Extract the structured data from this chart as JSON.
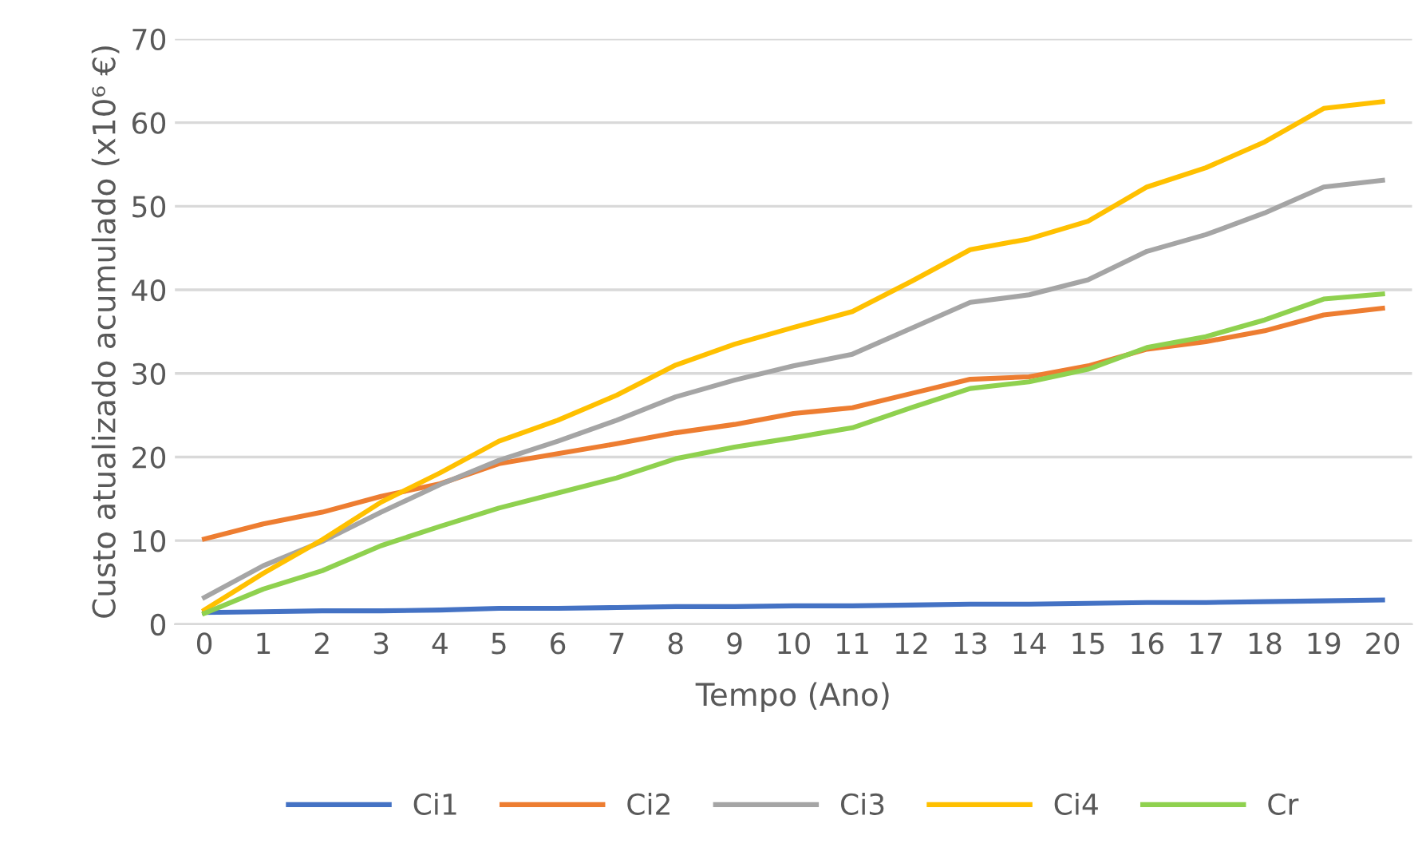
{
  "chart_data": {
    "type": "line",
    "xlabel": "Tempo (Ano)",
    "ylabel": "Custo atualizado acumulado (x10⁶ €)",
    "categories": [
      "0",
      "1",
      "2",
      "3",
      "4",
      "5",
      "6",
      "7",
      "8",
      "9",
      "10",
      "11",
      "12",
      "13",
      "14",
      "15",
      "16",
      "17",
      "18",
      "19",
      "20"
    ],
    "series": [
      {
        "name": "Ci1",
        "color": "#4472c4",
        "values": [
          1.4,
          1.5,
          1.6,
          1.6,
          1.7,
          1.9,
          1.9,
          2.0,
          2.1,
          2.1,
          2.2,
          2.2,
          2.3,
          2.4,
          2.4,
          2.5,
          2.6,
          2.6,
          2.7,
          2.8,
          2.9
        ]
      },
      {
        "name": "Ci2",
        "color": "#ed7d31",
        "values": [
          10.2,
          12,
          13.4,
          15.3,
          16.8,
          19.2,
          20.4,
          21.6,
          22.9,
          23.9,
          25.2,
          25.9,
          27.6,
          29.3,
          29.6,
          30.9,
          32.9,
          33.8,
          35.1,
          37.0,
          37.8
        ]
      },
      {
        "name": "Ci3",
        "color": "#a5a5a5",
        "values": [
          3.2,
          7.0,
          9.9,
          13.4,
          16.7,
          19.6,
          21.9,
          24.4,
          27.2,
          29.2,
          30.9,
          32.3,
          35.4,
          38.5,
          39.4,
          41.2,
          44.6,
          46.6,
          49.2,
          52.3,
          53.1
        ]
      },
      {
        "name": "Ci4",
        "color": "#ffc000",
        "values": [
          1.7,
          6.1,
          10.1,
          14.6,
          18.1,
          21.9,
          24.4,
          27.4,
          31.0,
          33.5,
          35.5,
          37.4,
          41.0,
          44.8,
          46.1,
          48.2,
          52.3,
          54.6,
          57.7,
          61.7,
          62.5
        ]
      },
      {
        "name": "Cr",
        "color": "#8fd14f",
        "values": [
          1.3,
          4.2,
          6.4,
          9.4,
          11.7,
          13.9,
          15.7,
          17.5,
          19.8,
          21.2,
          22.3,
          23.5,
          25.9,
          28.2,
          29.0,
          30.5,
          33.1,
          34.4,
          36.4,
          38.9,
          39.5
        ]
      }
    ],
    "ylim": [
      0,
      70
    ],
    "yticks": [
      0,
      10,
      20,
      30,
      40,
      50,
      60,
      70
    ],
    "grid": "y",
    "legend": "bottom",
    "marker": "none",
    "line_style": "solid"
  }
}
